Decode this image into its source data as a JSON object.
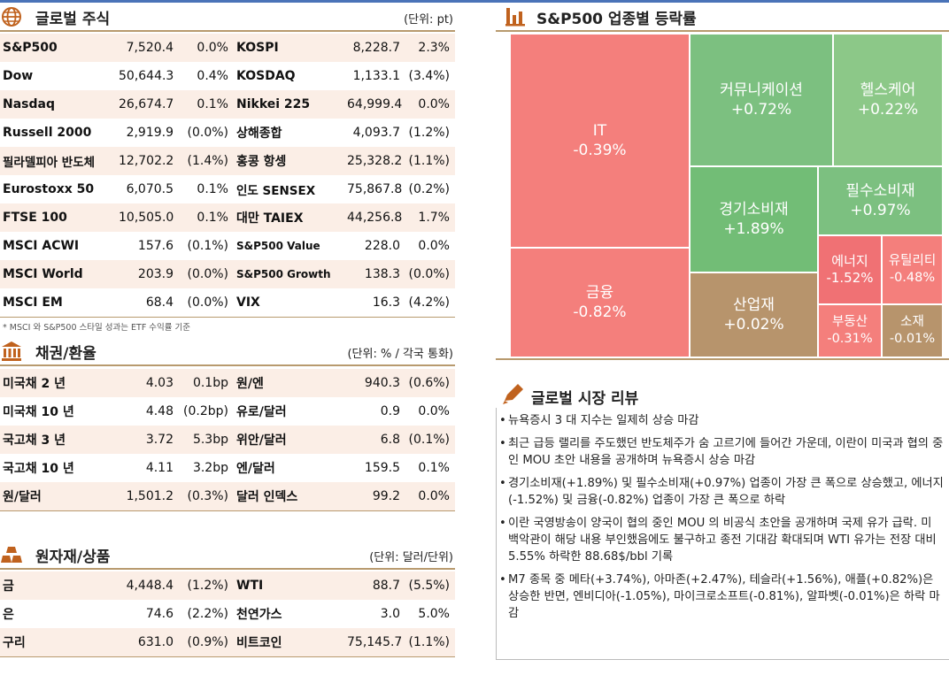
{
  "global_stocks": {
    "title": "글로벌 주식",
    "unit": "(단위: pt)",
    "rows": [
      {
        "n1": "S&P500",
        "v1": "7,520.4",
        "c1": "0.0%",
        "n2": "KOSPI",
        "v2": "8,228.7",
        "c2": "2.3%"
      },
      {
        "n1": "Dow",
        "v1": "50,644.3",
        "c1": "0.4%",
        "n2": "KOSDAQ",
        "v2": "1,133.1",
        "c2": "(3.4%)"
      },
      {
        "n1": "Nasdaq",
        "v1": "26,674.7",
        "c1": "0.1%",
        "n2": "Nikkei 225",
        "v2": "64,999.4",
        "c2": "0.0%"
      },
      {
        "n1": "Russell 2000",
        "v1": "2,919.9",
        "c1": "(0.0%)",
        "n2": "상해종합",
        "v2": "4,093.7",
        "c2": "(1.2%)"
      },
      {
        "n1": "필라델피아 반도체",
        "v1": "12,702.2",
        "c1": "(1.4%)",
        "n2": "홍콩 항셍",
        "v2": "25,328.2",
        "c2": "(1.1%)"
      },
      {
        "n1": "Eurostoxx 50",
        "v1": "6,070.5",
        "c1": "0.1%",
        "n2": "인도 SENSEX",
        "v2": "75,867.8",
        "c2": "(0.2%)"
      },
      {
        "n1": "FTSE 100",
        "v1": "10,505.0",
        "c1": "0.1%",
        "n2": "대만 TAIEX",
        "v2": "44,256.8",
        "c2": "1.7%"
      },
      {
        "n1": "MSCI ACWI",
        "v1": "157.6",
        "c1": "(0.1%)",
        "n2": "S&P500 Value",
        "v2": "228.0",
        "c2": "0.0%"
      },
      {
        "n1": "MSCI World",
        "v1": "203.9",
        "c1": "(0.0%)",
        "n2": "S&P500 Growth",
        "v2": "138.3",
        "c2": "(0.0%)"
      },
      {
        "n1": "MSCI EM",
        "v1": "68.4",
        "c1": "(0.0%)",
        "n2": "VIX",
        "v2": "16.3",
        "c2": "(4.2%)"
      }
    ],
    "footnote": "* MSCI 와 S&P500 스타일 성과는 ETF 수익률 기준"
  },
  "bonds_fx": {
    "title": "채권/환율",
    "unit": "(단위: % / 각국 통화)",
    "rows": [
      {
        "n1": "미국채 2 년",
        "v1": "4.03",
        "c1": "0.1bp",
        "n2": "원/엔",
        "v2": "940.3",
        "c2": "(0.6%)"
      },
      {
        "n1": "미국채 10 년",
        "v1": "4.48",
        "c1": "(0.2bp)",
        "n2": "유로/달러",
        "v2": "0.9",
        "c2": "0.0%"
      },
      {
        "n1": "국고채 3 년",
        "v1": "3.72",
        "c1": "5.3bp",
        "n2": "위안/달러",
        "v2": "6.8",
        "c2": "(0.1%)"
      },
      {
        "n1": "국고채 10 년",
        "v1": "4.11",
        "c1": "3.2bp",
        "n2": "엔/달러",
        "v2": "159.5",
        "c2": "0.1%"
      },
      {
        "n1": "원/달러",
        "v1": "1,501.2",
        "c1": "(0.3%)",
        "n2": "달러 인덱스",
        "v2": "99.2",
        "c2": "0.0%"
      }
    ]
  },
  "commodities": {
    "title": "원자재/상품",
    "unit": "(단위: 달러/단위)",
    "rows": [
      {
        "n1": "금",
        "v1": "4,448.4",
        "c1": "(1.2%)",
        "n2": "WTI",
        "v2": "88.7",
        "c2": "(5.5%)"
      },
      {
        "n1": "은",
        "v1": "74.6",
        "c1": "(2.2%)",
        "n2": "천연가스",
        "v2": "3.0",
        "c2": "5.0%"
      },
      {
        "n1": "구리",
        "v1": "631.0",
        "c1": "(0.9%)",
        "n2": "비트코인",
        "v2": "75,145.7",
        "c2": "(1.1%)"
      }
    ]
  },
  "sector": {
    "title": "S&P500 업종별 등락률",
    "colors": {
      "down": "#f47f7c",
      "up": "#7cc080",
      "flat": "#b7946c"
    },
    "cells": [
      {
        "name": "IT",
        "value": "-0.39%",
        "color": "#f47f7c"
      },
      {
        "name": "금융",
        "value": "-0.82%",
        "color": "#f47f7c"
      },
      {
        "name": "커뮤니케이션",
        "value": "+0.72%",
        "color": "#7cc080"
      },
      {
        "name": "헬스케어",
        "value": "+0.22%",
        "color": "#8cc888"
      },
      {
        "name": "경기소비재",
        "value": "+1.89%",
        "color": "#72bd76"
      },
      {
        "name": "필수소비재",
        "value": "+0.97%",
        "color": "#7cc080"
      },
      {
        "name": "산업재",
        "value": "+0.02%",
        "color": "#b7946c"
      },
      {
        "name": "에너지",
        "value": "-1.52%",
        "color": "#f07174"
      },
      {
        "name": "유틸리티",
        "value": "-0.48%",
        "color": "#f47f7c"
      },
      {
        "name": "부동산",
        "value": "-0.31%",
        "color": "#f47f7c"
      },
      {
        "name": "소재",
        "value": "-0.01%",
        "color": "#b7946c"
      }
    ]
  },
  "review": {
    "title": "글로벌 시장 리뷰",
    "items": [
      "뉴욕증시 3 대 지수는 일제히 상승 마감",
      "최근 급등 랠리를 주도했던 반도체주가 숨 고르기에 들어간 가운데, 이란이 미국과 협의 중인 MOU 초안 내용을 공개하며 뉴욕증시 상승 마감",
      "경기소비재(+1.89%) 및 필수소비재(+0.97%) 업종이 가장 큰 폭으로 상승했고, 에너지(-1.52%) 및 금융(-0.82%) 업종이 가장 큰 폭으로 하락",
      "이란 국영방송이 양국이 협의 중인 MOU 의 비공식 초안을 공개하며 국제 유가 급락. 미 백악관이 해당 내용 부인했음에도 불구하고 종전 기대감 확대되며 WTI 유가는 전장 대비 5.55% 하락한 88.68$/bbl 기록",
      "M7 종목 중 메타(+3.74%), 아마존(+2.47%), 테슬라(+1.56%), 애플(+0.82%)은 상승한 반면, 엔비디아(-1.05%), 마이크로소프트(-0.81%), 알파벳(-0.01%)은 하락 마감"
    ]
  }
}
